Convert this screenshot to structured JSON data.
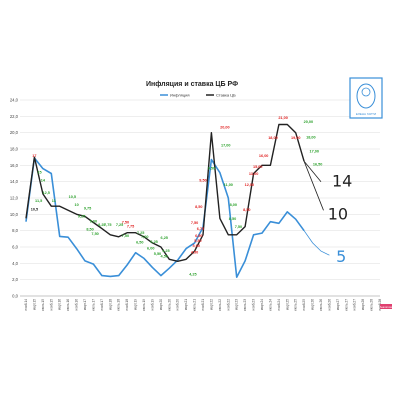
{
  "chart_data": {
    "type": "line",
    "title": "Инфляция и ставка ЦБ РФ",
    "ylim": [
      0,
      24
    ],
    "yticks": [
      "0,0",
      "2,0",
      "4,0",
      "6,0",
      "8,0",
      "10,0",
      "12,0",
      "14,0",
      "16,0",
      "18,0",
      "20,0",
      "22,0",
      "24,0"
    ],
    "x_categories": [
      "нояб.14",
      "март.15",
      "июль.15",
      "нояб.15",
      "март.16",
      "июль.16",
      "нояб.16",
      "март.17",
      "июль.17",
      "нояб.17",
      "март.18",
      "июль.18",
      "нояб.18",
      "март.19",
      "июль.19",
      "нояб.19",
      "март.20",
      "июль.20",
      "нояб.20",
      "март.21",
      "июль.21",
      "нояб.21",
      "март.22",
      "июль.22",
      "нояб.22",
      "март.23",
      "июль.23",
      "нояб.23",
      "март.24",
      "июль.24",
      "нояб.24",
      "март.25",
      "июль.25",
      "нояб.25",
      "март.26",
      "июль.26",
      "нояб.26",
      "март.27",
      "июль.27",
      "нояб.27",
      "март.28",
      "июль.28",
      "нояб.28"
    ],
    "series": [
      {
        "name": "Инфляция",
        "color": "#3a8fd8",
        "points": [
          [
            0,
            9.1
          ],
          [
            1,
            16.9
          ],
          [
            2,
            15.6
          ],
          [
            3,
            15.0
          ],
          [
            4,
            7.3
          ],
          [
            5,
            7.2
          ],
          [
            6,
            5.8
          ],
          [
            7,
            4.3
          ],
          [
            8,
            3.9
          ],
          [
            9,
            2.5
          ],
          [
            10,
            2.4
          ],
          [
            11,
            2.5
          ],
          [
            12,
            3.8
          ],
          [
            13,
            5.3
          ],
          [
            14,
            4.6
          ],
          [
            15,
            3.5
          ],
          [
            16,
            2.5
          ],
          [
            17,
            3.4
          ],
          [
            18,
            4.4
          ],
          [
            19,
            5.8
          ],
          [
            20,
            6.5
          ],
          [
            21,
            8.4
          ],
          [
            22,
            16.7
          ],
          [
            23,
            15.1
          ],
          [
            24,
            12.0
          ],
          [
            25,
            2.3
          ],
          [
            26,
            4.3
          ],
          [
            27,
            7.5
          ],
          [
            28,
            7.7
          ],
          [
            29,
            9.1
          ],
          [
            30,
            8.9
          ],
          [
            31,
            10.3
          ],
          [
            32,
            9.4
          ],
          [
            33,
            8.0
          ]
        ],
        "forecast": [
          [
            33,
            8.0
          ],
          [
            34,
            6.5
          ],
          [
            35,
            5.5
          ],
          [
            36,
            5.0
          ]
        ],
        "labels": []
      },
      {
        "name": "Ставка ЦБ",
        "color": "#222222",
        "points": [
          [
            0,
            9.5
          ],
          [
            1,
            17.0
          ],
          [
            2,
            12.5
          ],
          [
            3,
            11.0
          ],
          [
            4,
            11.0
          ],
          [
            5,
            10.5
          ],
          [
            6,
            10.0
          ],
          [
            7,
            9.75
          ],
          [
            8,
            9.0
          ],
          [
            9,
            8.25
          ],
          [
            10,
            7.5
          ],
          [
            11,
            7.25
          ],
          [
            12,
            7.75
          ],
          [
            13,
            7.75
          ],
          [
            14,
            7.25
          ],
          [
            15,
            6.5
          ],
          [
            16,
            6.0
          ],
          [
            17,
            4.5
          ],
          [
            18,
            4.25
          ],
          [
            19,
            4.5
          ],
          [
            20,
            5.5
          ],
          [
            21,
            7.5
          ],
          [
            22,
            20.0
          ],
          [
            23,
            9.5
          ],
          [
            24,
            7.5
          ],
          [
            25,
            7.5
          ],
          [
            26,
            8.5
          ],
          [
            27,
            15.0
          ],
          [
            28,
            16.0
          ],
          [
            29,
            16.0
          ],
          [
            30,
            21.0
          ],
          [
            31,
            21.0
          ],
          [
            32,
            20.0
          ],
          [
            33,
            16.5
          ]
        ],
        "forecast": [
          [
            33,
            16.5
          ],
          [
            35,
            14.0
          ]
        ],
        "labels": [
          {
            "i": 1,
            "v": 17.0,
            "text": "17",
            "color": "#e02020"
          },
          {
            "i": 1,
            "v": 10.5,
            "text": "10,5",
            "color": "#222222"
          },
          {
            "i": 1.6,
            "v": 15.0,
            "text": "15",
            "color": "#2aa02a"
          },
          {
            "i": 2,
            "v": 14.0,
            "text": "14",
            "color": "#2aa02a"
          },
          {
            "i": 2.4,
            "v": 12.5,
            "text": "12,5",
            "color": "#2aa02a"
          },
          {
            "i": 1.5,
            "v": 11.5,
            "text": "11,5",
            "color": "#2aa02a"
          },
          {
            "i": 3.3,
            "v": 11.5,
            "text": "11",
            "color": "#2aa02a"
          },
          {
            "i": 5.5,
            "v": 12.0,
            "text": "10,5",
            "color": "#2aa02a"
          },
          {
            "i": 6.0,
            "v": 11.0,
            "text": "10",
            "color": "#2aa02a"
          },
          {
            "i": 7.3,
            "v": 10.6,
            "text": "9,75",
            "color": "#2aa02a"
          },
          {
            "i": 6.6,
            "v": 9.6,
            "text": "9,25",
            "color": "#2aa02a"
          },
          {
            "i": 8.0,
            "v": 9.0,
            "text": "9,00",
            "color": "#2aa02a"
          },
          {
            "i": 7.6,
            "v": 8.0,
            "text": "8,50",
            "color": "#2aa02a"
          },
          {
            "i": 8.2,
            "v": 7.5,
            "text": "7,50",
            "color": "#2aa02a"
          },
          {
            "i": 9.0,
            "v": 8.6,
            "text": "8,25",
            "color": "#2aa02a"
          },
          {
            "i": 9.7,
            "v": 8.6,
            "text": "7,75",
            "color": "#2aa02a"
          },
          {
            "i": 11.1,
            "v": 8.6,
            "text": "7,25",
            "color": "#2aa02a"
          },
          {
            "i": 11.8,
            "v": 8.9,
            "text": "7,50",
            "color": "#e02020"
          },
          {
            "i": 12.4,
            "v": 8.4,
            "text": "7,75",
            "color": "#e02020"
          },
          {
            "i": 11.8,
            "v": 7.2,
            "text": "7,50",
            "color": "#2aa02a"
          },
          {
            "i": 13.6,
            "v": 7.6,
            "text": "7,25",
            "color": "#2aa02a"
          },
          {
            "i": 14.1,
            "v": 7.1,
            "text": "7,00",
            "color": "#2aa02a"
          },
          {
            "i": 13.5,
            "v": 6.4,
            "text": "6,50",
            "color": "#2aa02a"
          },
          {
            "i": 15.2,
            "v": 6.5,
            "text": "6,25",
            "color": "#2aa02a"
          },
          {
            "i": 14.8,
            "v": 5.7,
            "text": "6,00",
            "color": "#2aa02a"
          },
          {
            "i": 15.6,
            "v": 5.0,
            "text": "5,50",
            "color": "#2aa02a"
          },
          {
            "i": 16.4,
            "v": 4.7,
            "text": "4,50",
            "color": "#2aa02a"
          },
          {
            "i": 16.6,
            "v": 5.4,
            "text": "4,25",
            "color": "#2aa02a"
          },
          {
            "i": 16.4,
            "v": 7.0,
            "text": "6,25",
            "color": "#2aa02a"
          },
          {
            "i": 19.8,
            "v": 2.5,
            "text": "4,25",
            "color": "#2aa02a"
          },
          {
            "i": 20.0,
            "v": 5.2,
            "text": "4,50",
            "color": "#e02020"
          },
          {
            "i": 20.2,
            "v": 6.0,
            "text": "5,00",
            "color": "#e02020"
          },
          {
            "i": 20.4,
            "v": 6.6,
            "text": "5,50",
            "color": "#e02020"
          },
          {
            "i": 20.5,
            "v": 7.2,
            "text": "6,50",
            "color": "#e02020"
          },
          {
            "i": 20.7,
            "v": 8.1,
            "text": "6,75",
            "color": "#e02020"
          },
          {
            "i": 20.0,
            "v": 8.8,
            "text": "7,50",
            "color": "#e02020"
          },
          {
            "i": 20.5,
            "v": 10.8,
            "text": "8,50",
            "color": "#e02020"
          },
          {
            "i": 21.0,
            "v": 14.0,
            "text": "9,50",
            "color": "#e02020"
          },
          {
            "i": 22.0,
            "v": 15.5,
            "text": "9,50",
            "color": "#2aa02a"
          },
          {
            "i": 23.6,
            "v": 20.5,
            "text": "20,00",
            "color": "#e02020"
          },
          {
            "i": 23.7,
            "v": 18.3,
            "text": "17,00",
            "color": "#2aa02a"
          },
          {
            "i": 24.0,
            "v": 13.5,
            "text": "11,00",
            "color": "#2aa02a"
          },
          {
            "i": 24.6,
            "v": 11.0,
            "text": "8,00",
            "color": "#2aa02a"
          },
          {
            "i": 24.5,
            "v": 9.3,
            "text": "8,50",
            "color": "#2aa02a"
          },
          {
            "i": 25.2,
            "v": 8.3,
            "text": "7,50",
            "color": "#2aa02a"
          },
          {
            "i": 26.2,
            "v": 10.4,
            "text": "8,50",
            "color": "#e02020"
          },
          {
            "i": 26.5,
            "v": 13.5,
            "text": "12,00",
            "color": "#e02020"
          },
          {
            "i": 27.0,
            "v": 14.8,
            "text": "13,00",
            "color": "#e02020"
          },
          {
            "i": 27.5,
            "v": 15.7,
            "text": "15,00",
            "color": "#e02020"
          },
          {
            "i": 28.2,
            "v": 17.0,
            "text": "16,00",
            "color": "#e02020"
          },
          {
            "i": 29.3,
            "v": 19.2,
            "text": "18,00",
            "color": "#e02020"
          },
          {
            "i": 30.5,
            "v": 21.7,
            "text": "21,00",
            "color": "#e02020"
          },
          {
            "i": 32.0,
            "v": 19.2,
            "text": "19,00",
            "color": "#e02020"
          },
          {
            "i": 33.5,
            "v": 21.2,
            "text": "20,00",
            "color": "#2aa02a"
          },
          {
            "i": 33.8,
            "v": 19.3,
            "text": "18,00",
            "color": "#2aa02a"
          },
          {
            "i": 34.2,
            "v": 17.6,
            "text": "17,00",
            "color": "#2aa02a"
          },
          {
            "i": 34.6,
            "v": 16.0,
            "text": "16,50",
            "color": "#2aa02a"
          }
        ]
      }
    ],
    "legend": {
      "position": "top-center",
      "entries": [
        "Инфляция",
        "Ставка ЦБ"
      ]
    },
    "annotations": [
      {
        "text": "14",
        "i": 36.3,
        "v": 14.0,
        "color": "#222222"
      },
      {
        "text": "10",
        "i": 35.8,
        "v": 10.0,
        "color": "#222222"
      },
      {
        "text": "5",
        "i": 36.8,
        "v": 4.8,
        "color": "#3a8fd8"
      }
    ],
    "grid": true
  },
  "logo": {
    "text": "ЕЛЕНА ГАРТИ",
    "color": "#3a8fd8"
  },
  "corner_badge": {
    "text": "Аналитика"
  }
}
